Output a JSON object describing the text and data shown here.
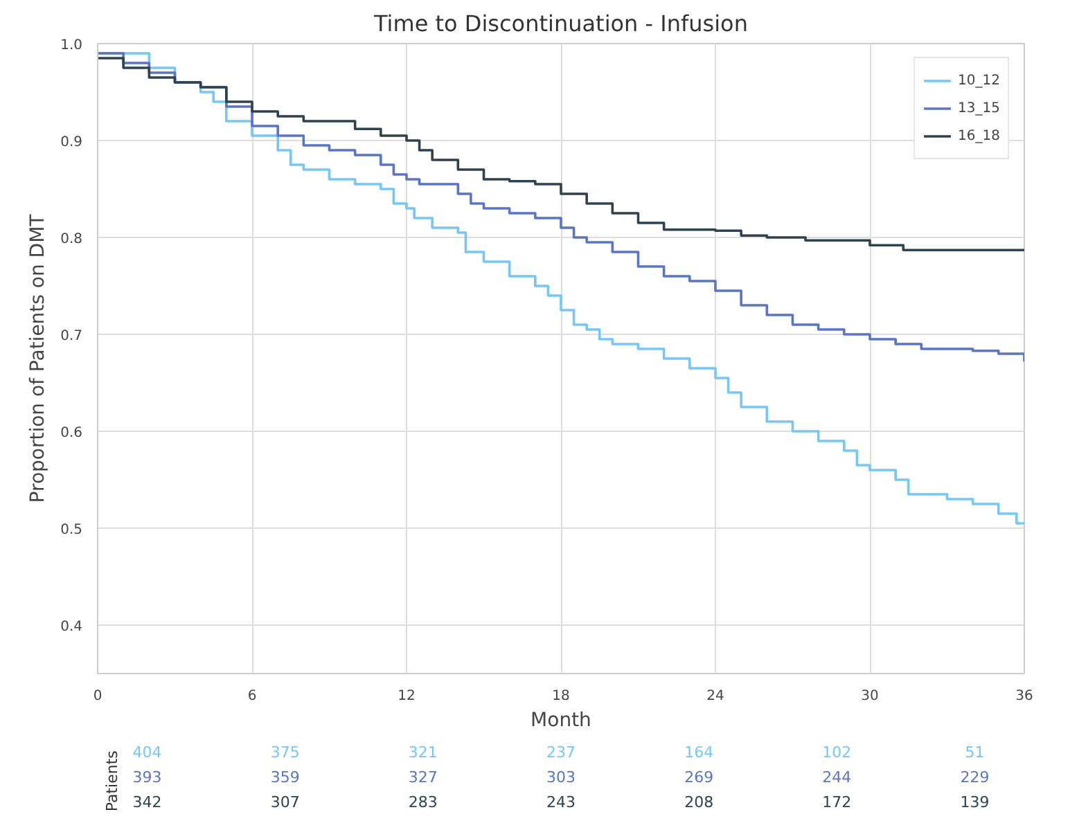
{
  "chart_data": {
    "type": "step",
    "title": "Time to Discontinuation - Infusion",
    "xlabel": "Month",
    "ylabel": "Proportion of Patients on DMT",
    "xlim": [
      0,
      36
    ],
    "ylim": [
      0.35,
      1.0
    ],
    "xticks": [
      0,
      6,
      12,
      18,
      24,
      30,
      36
    ],
    "yticks": [
      0.4,
      0.5,
      0.6,
      0.7,
      0.8,
      0.9,
      {
        "value": 1.0,
        "label": "1.0"
      }
    ],
    "grid": true,
    "legend": "top right",
    "series": [
      {
        "name": "10_12",
        "color": "#74c7f7",
        "x": [
          0,
          1,
          2,
          3,
          4,
          4.5,
          5,
          6,
          7,
          7.5,
          8,
          9,
          10,
          11,
          11.5,
          12,
          12.3,
          13,
          14,
          14.3,
          15,
          16,
          17,
          17.5,
          18,
          18.5,
          19,
          19.5,
          20,
          21,
          22,
          23,
          24,
          24.5,
          25,
          26,
          27,
          28,
          29,
          29.5,
          30,
          31,
          31.5,
          33,
          34,
          35,
          35.7,
          36
        ],
        "values": [
          0.99,
          0.99,
          0.975,
          0.96,
          0.95,
          0.94,
          0.92,
          0.905,
          0.89,
          0.875,
          0.87,
          0.86,
          0.855,
          0.85,
          0.835,
          0.83,
          0.82,
          0.81,
          0.805,
          0.785,
          0.775,
          0.76,
          0.75,
          0.74,
          0.725,
          0.71,
          0.705,
          0.695,
          0.69,
          0.685,
          0.675,
          0.665,
          0.655,
          0.64,
          0.625,
          0.61,
          0.6,
          0.59,
          0.58,
          0.565,
          0.56,
          0.55,
          0.535,
          0.53,
          0.525,
          0.515,
          0.505,
          0.505
        ]
      },
      {
        "name": "13_15",
        "color": "#5a74c6",
        "x": [
          0,
          1,
          2,
          3,
          4,
          5,
          6,
          7,
          8,
          9,
          10,
          11,
          11.5,
          12,
          12.5,
          14,
          14.5,
          15,
          16,
          17,
          18,
          18.5,
          19,
          20,
          21,
          22,
          23,
          24,
          25,
          26,
          27,
          28,
          29,
          30,
          31,
          32,
          34,
          35,
          36
        ],
        "values": [
          0.99,
          0.98,
          0.97,
          0.96,
          0.955,
          0.935,
          0.915,
          0.905,
          0.895,
          0.89,
          0.885,
          0.875,
          0.865,
          0.86,
          0.855,
          0.845,
          0.835,
          0.83,
          0.825,
          0.82,
          0.81,
          0.8,
          0.795,
          0.785,
          0.77,
          0.76,
          0.755,
          0.745,
          0.73,
          0.72,
          0.71,
          0.705,
          0.7,
          0.695,
          0.69,
          0.685,
          0.683,
          0.68,
          0.672
        ]
      },
      {
        "name": "16_18",
        "color": "#2e4250",
        "x": [
          0,
          1,
          2,
          3,
          4,
          5,
          6,
          7,
          8,
          10,
          11,
          12,
          12.5,
          13,
          14,
          15,
          16,
          17,
          18,
          19,
          20,
          21,
          22,
          24,
          25,
          26,
          27.5,
          30,
          31.3,
          36
        ],
        "values": [
          0.985,
          0.975,
          0.965,
          0.96,
          0.955,
          0.94,
          0.93,
          0.925,
          0.92,
          0.912,
          0.905,
          0.9,
          0.89,
          0.88,
          0.87,
          0.86,
          0.858,
          0.855,
          0.845,
          0.835,
          0.825,
          0.815,
          0.808,
          0.807,
          0.802,
          0.8,
          0.797,
          0.792,
          0.787,
          0.787
        ]
      }
    ],
    "annotations": [
      "Patients",
      "404",
      "375",
      "321",
      "237",
      "164",
      "102",
      "51",
      "393",
      "359",
      "327",
      "303",
      "269",
      "244",
      "229",
      "342",
      "307",
      "283",
      "243",
      "208",
      "172",
      "139"
    ]
  }
}
